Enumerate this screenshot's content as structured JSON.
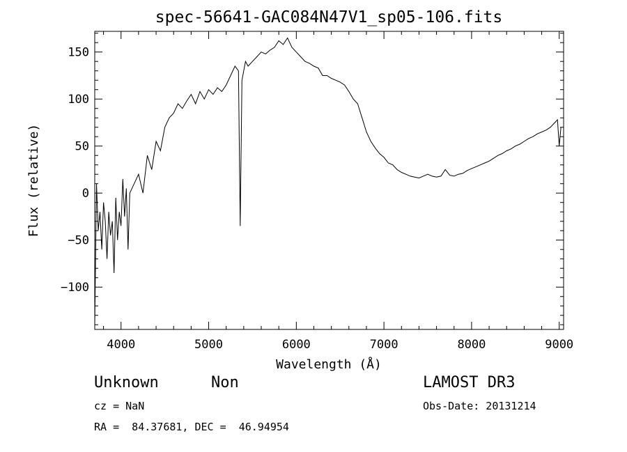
{
  "chart_data": {
    "type": "line",
    "title": "spec-56641-GAC084N47V1_sp05-106.fits",
    "xlabel": "Wavelength (Å)",
    "ylabel": "Flux (relative)",
    "xlim": [
      3700,
      9050
    ],
    "ylim": [
      -145,
      172
    ],
    "xticks": [
      4000,
      5000,
      6000,
      7000,
      8000,
      9000
    ],
    "yticks": [
      -100,
      -50,
      0,
      50,
      100,
      150
    ],
    "grid": false,
    "legend": "none",
    "line_color": "#000000",
    "series": [
      {
        "x": [
          3700,
          3720,
          3740,
          3760,
          3780,
          3800,
          3820,
          3840,
          3860,
          3880,
          3900,
          3920,
          3940,
          3960,
          3980,
          4000,
          4020,
          4040,
          4060,
          4080,
          4100,
          4150,
          4200,
          4250,
          4300,
          4350,
          4400,
          4450,
          4500,
          4550,
          4600,
          4650,
          4700,
          4750,
          4800,
          4850,
          4900,
          4950,
          5000,
          5050,
          5100,
          5150,
          5200,
          5250,
          5300,
          5340,
          5360,
          5380,
          5420,
          5450,
          5500,
          5550,
          5600,
          5650,
          5700,
          5750,
          5800,
          5850,
          5900,
          5950,
          6000,
          6050,
          6100,
          6150,
          6200,
          6250,
          6300,
          6350,
          6400,
          6450,
          6500,
          6550,
          6600,
          6650,
          6700,
          6750,
          6800,
          6850,
          6900,
          6950,
          7000,
          7050,
          7100,
          7150,
          7200,
          7250,
          7300,
          7350,
          7400,
          7450,
          7500,
          7550,
          7600,
          7650,
          7700,
          7750,
          7800,
          7850,
          7900,
          7950,
          8000,
          8050,
          8100,
          8150,
          8200,
          8250,
          8300,
          8350,
          8400,
          8450,
          8500,
          8550,
          8600,
          8650,
          8700,
          8750,
          8800,
          8850,
          8900,
          8950,
          8980,
          9000,
          9020
        ],
        "y": [
          -140,
          10,
          -40,
          -20,
          -60,
          -10,
          -30,
          -70,
          -20,
          -45,
          -30,
          -85,
          -5,
          -50,
          -20,
          -35,
          15,
          -25,
          5,
          -60,
          0,
          10,
          20,
          0,
          40,
          25,
          55,
          45,
          70,
          80,
          85,
          95,
          90,
          98,
          105,
          95,
          108,
          100,
          110,
          105,
          112,
          108,
          115,
          125,
          135,
          130,
          -35,
          120,
          140,
          135,
          140,
          145,
          150,
          148,
          152,
          155,
          162,
          158,
          165,
          155,
          150,
          145,
          140,
          138,
          135,
          133,
          125,
          125,
          122,
          120,
          118,
          115,
          108,
          100,
          95,
          80,
          65,
          55,
          48,
          42,
          38,
          32,
          30,
          25,
          22,
          20,
          18,
          17,
          16,
          18,
          20,
          18,
          17,
          18,
          25,
          19,
          18,
          20,
          21,
          24,
          26,
          28,
          30,
          32,
          34,
          37,
          40,
          42,
          45,
          47,
          50,
          52,
          55,
          58,
          60,
          63,
          65,
          67,
          70,
          75,
          78,
          50,
          70
        ]
      }
    ]
  },
  "footer": {
    "object_class": "Unknown",
    "subclass": "Non",
    "survey": "LAMOST DR3",
    "cz": "cz = NaN",
    "obs_date": "Obs-Date: 20131214",
    "coords": "RA =  84.37681, DEC =  46.94954"
  }
}
